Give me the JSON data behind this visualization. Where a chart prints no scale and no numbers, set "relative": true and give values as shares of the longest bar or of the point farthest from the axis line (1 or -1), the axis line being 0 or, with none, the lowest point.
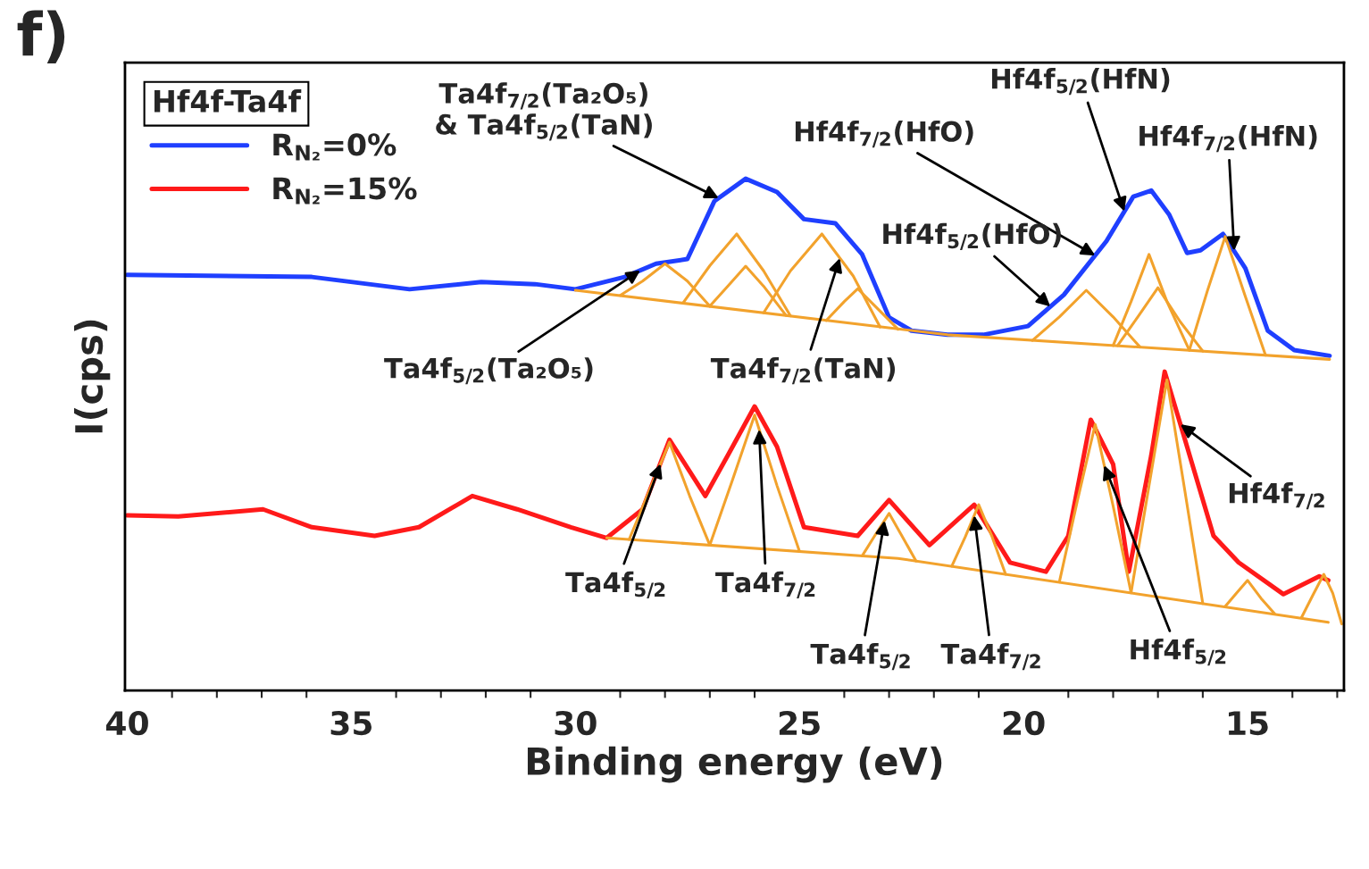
{
  "chart_data": {
    "type": "line",
    "relative": true,
    "xlabel": "Binding energy (eV)",
    "ylabel": "I(cps)",
    "legend_title": "Hf4f-Ta4f",
    "legend": "top left",
    "xlim": [
      40.05,
      12.85
    ],
    "xticks": [
      40,
      35,
      30,
      25,
      20,
      15
    ],
    "series": [
      {
        "name": "R$_{N₂}$=0%",
        "color": "#1f3fff",
        "x": [
          40,
          35.88,
          33.7,
          32.1,
          30.9,
          30.0,
          28.9,
          28.2,
          27.5,
          26.9,
          26.2,
          25.5,
          24.9,
          24.2,
          23.6,
          23.0,
          22.5,
          21.7,
          20.9,
          19.9,
          19.1,
          18.15,
          17.55,
          17.15,
          16.75,
          16.35,
          16.05,
          15.55,
          15.05,
          14.55,
          13.96,
          13.17
        ],
        "values": [
          0.812,
          0.808,
          0.784,
          0.798,
          0.794,
          0.784,
          0.808,
          0.834,
          0.843,
          0.956,
          1.0,
          0.974,
          0.921,
          0.913,
          0.852,
          0.729,
          0.703,
          0.695,
          0.695,
          0.712,
          0.773,
          0.878,
          0.965,
          0.977,
          0.93,
          0.855,
          0.86,
          0.892,
          0.825,
          0.703,
          0.665,
          0.654
        ]
      },
      {
        "name": "R$_{N₂}$=15%",
        "color": "#ff1a1a",
        "x": [
          40,
          38.86,
          36.97,
          35.88,
          34.48,
          33.49,
          32.3,
          31.3,
          30.1,
          29.3,
          28.5,
          27.9,
          27.1,
          26.6,
          26.0,
          25.5,
          24.9,
          23.7,
          23.0,
          22.1,
          21.1,
          20.3,
          19.5,
          19.0,
          18.5,
          18.0,
          17.65,
          17.15,
          16.85,
          16.35,
          15.76,
          15.2,
          14.2,
          13.4,
          13.2
        ],
        "values": [
          0.342,
          0.34,
          0.354,
          0.319,
          0.302,
          0.319,
          0.38,
          0.354,
          0.319,
          0.298,
          0.354,
          0.49,
          0.38,
          0.459,
          0.555,
          0.476,
          0.319,
          0.302,
          0.372,
          0.284,
          0.363,
          0.25,
          0.232,
          0.302,
          0.529,
          0.442,
          0.232,
          0.459,
          0.623,
          0.476,
          0.302,
          0.25,
          0.188,
          0.223,
          0.215
        ]
      },
      {
        "color": "#f2a22c",
        "x": [
          30,
          21.7,
          13.17
        ],
        "values": [
          0.782,
          0.695,
          0.647
        ]
      },
      {
        "color": "#f2a22c",
        "x": [
          29,
          28.5,
          28,
          27.5,
          27
        ],
        "values": [
          0.772,
          0.8,
          0.834,
          0.8,
          0.751
        ]
      },
      {
        "color": "#f2a22c",
        "x": [
          27.6,
          27.0,
          26.4,
          25.8,
          25.2
        ],
        "values": [
          0.757,
          0.83,
          0.892,
          0.82,
          0.732
        ]
      },
      {
        "color": "#f2a22c",
        "x": [
          27,
          26.6,
          26.2,
          25.8,
          25.3
        ],
        "values": [
          0.751,
          0.79,
          0.829,
          0.79,
          0.733
        ]
      },
      {
        "color": "#f2a22c",
        "x": [
          25.8,
          25.2,
          24.5,
          23.8,
          23.2
        ],
        "values": [
          0.738,
          0.82,
          0.892,
          0.81,
          0.71
        ]
      },
      {
        "color": "#f2a22c",
        "x": [
          24.4,
          24.0,
          23.7,
          23.3,
          22.8
        ],
        "values": [
          0.723,
          0.76,
          0.785,
          0.75,
          0.706
        ]
      },
      {
        "color": "#f2a22c",
        "x": [
          19.8,
          19.2,
          18.6,
          18.0,
          17.4
        ],
        "values": [
          0.684,
          0.73,
          0.782,
          0.73,
          0.671
        ]
      },
      {
        "color": "#f2a22c",
        "x": [
          18,
          17.6,
          17.2,
          16.8,
          16.3
        ],
        "values": [
          0.674,
          0.76,
          0.852,
          0.76,
          0.665
        ]
      },
      {
        "color": "#f2a22c",
        "x": [
          17.9,
          17.45,
          17.0,
          16.5,
          16.0
        ],
        "values": [
          0.674,
          0.73,
          0.787,
          0.72,
          0.663
        ]
      },
      {
        "color": "#f2a22c",
        "x": [
          16.3,
          15.9,
          15.5,
          15.05,
          14.6
        ],
        "values": [
          0.665,
          0.78,
          0.887,
          0.77,
          0.655
        ]
      },
      {
        "color": "#f2a22c",
        "x": [
          29.3,
          22.8,
          13.2
        ],
        "values": [
          0.298,
          0.258,
          0.133
        ]
      },
      {
        "color": "#f2a22c",
        "x": [
          28.8,
          28.35,
          27.9,
          27.45,
          27.0
        ],
        "values": [
          0.295,
          0.39,
          0.485,
          0.38,
          0.284
        ]
      },
      {
        "color": "#f2a22c",
        "x": [
          27,
          26.5,
          26.0,
          25.5,
          25.0
        ],
        "values": [
          0.284,
          0.41,
          0.538,
          0.4,
          0.272
        ]
      },
      {
        "color": "#f2a22c",
        "x": [
          23.6,
          23.3,
          23.0,
          22.7,
          22.4
        ],
        "values": [
          0.263,
          0.305,
          0.346,
          0.3,
          0.253
        ]
      },
      {
        "color": "#f2a22c",
        "x": [
          21.6,
          21.3,
          21.0,
          20.7,
          20.4
        ],
        "values": [
          0.243,
          0.3,
          0.363,
          0.3,
          0.227
        ]
      },
      {
        "color": "#f2a22c",
        "x": [
          19.2,
          18.8,
          18.4,
          18.0,
          17.6
        ],
        "values": [
          0.212,
          0.37,
          0.52,
          0.36,
          0.191
        ]
      },
      {
        "color": "#f2a22c",
        "x": [
          17.6,
          17.2,
          16.8,
          16.4,
          16.0
        ],
        "values": [
          0.191,
          0.4,
          0.607,
          0.39,
          0.17
        ]
      },
      {
        "color": "#f2a22c",
        "x": [
          15.5,
          15.25,
          15.0,
          14.7,
          14.4
        ],
        "values": [
          0.164,
          0.19,
          0.215,
          0.18,
          0.15
        ]
      },
      {
        "color": "#f2a22c",
        "x": [
          13.8,
          13.55,
          13.3,
          13.1,
          12.9
        ],
        "values": [
          0.142,
          0.185,
          0.227,
          0.19,
          0.13
        ]
      }
    ],
    "annotations": [
      "f)",
      {
        "text": "Ta4f$_{7/2}$(Ta₂O₅)\n& Ta4f$_{5/2}$(TaN)",
        "x": 26.8,
        "y": 0.962
      },
      {
        "text": "Hf4f$_{7/2}$(HfO)",
        "x": 18.4,
        "y": 0.85
      },
      {
        "text": "Hf4f$_{5/2}$(HfN)",
        "x": 17.75,
        "y": 0.936
      },
      {
        "text": "Hf4f$_{7/2}$(HfN)",
        "x": 15.3,
        "y": 0.859
      },
      {
        "text": "Hf4f$_{5/2}$(HfO)",
        "x": 19.4,
        "y": 0.75
      },
      {
        "text": "Ta4f$_{5/2}$(Ta₂O₅)",
        "x": 28.55,
        "y": 0.821
      },
      {
        "text": "Ta4f$_{7/2}$(TaN)",
        "x": 24.1,
        "y": 0.845
      },
      {
        "text": "Ta4f$_{5/2}$",
        "x": 28.1,
        "y": 0.443
      },
      {
        "text": "Ta4f$_{7/2}$",
        "x": 25.9,
        "y": 0.51
      },
      {
        "text": "Ta4f$_{5/2}$",
        "x": 23.1,
        "y": 0.332
      },
      {
        "text": "Ta4f$_{7/2}$",
        "x": 21.1,
        "y": 0.342
      },
      {
        "text": "Hf4f$_{5/2}$",
        "x": 18.2,
        "y": 0.44
      },
      {
        "text": "Hf4f$_{7/2}$",
        "x": 16.5,
        "y": 0.52
      }
    ]
  }
}
